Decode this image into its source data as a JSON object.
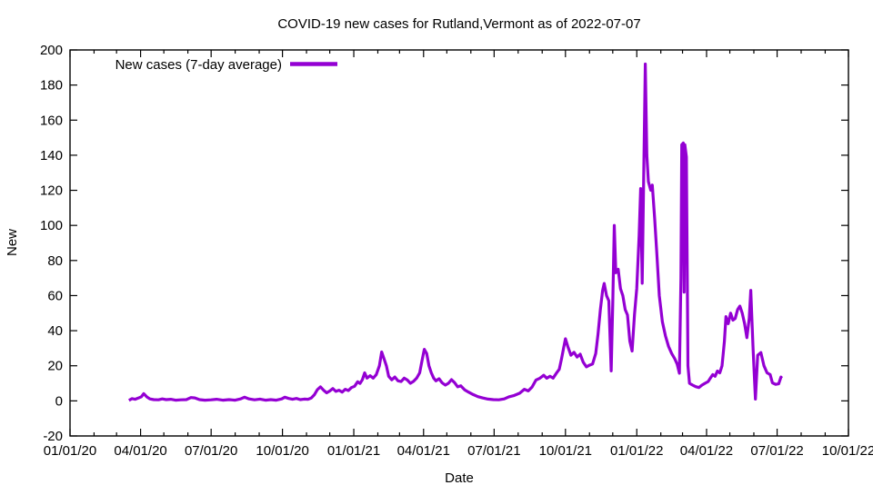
{
  "chart_data": {
    "type": "line",
    "title": "COVID-19 new cases for Rutland,Vermont as of 2022-07-07",
    "xlabel": "Date",
    "ylabel": "New",
    "grid": false,
    "legend_position": "top-left-inside",
    "legend_label": "New cases (7-day average)",
    "line_color": "#9400d3",
    "ylim": [
      -20,
      200
    ],
    "y_ticks": [
      {
        "v": -20,
        "label": "-20"
      },
      {
        "v": 0,
        "label": "0"
      },
      {
        "v": 20,
        "label": "20"
      },
      {
        "v": 40,
        "label": "40"
      },
      {
        "v": 60,
        "label": "60"
      },
      {
        "v": 80,
        "label": "80"
      },
      {
        "v": 100,
        "label": "100"
      },
      {
        "v": 120,
        "label": "120"
      },
      {
        "v": 140,
        "label": "140"
      },
      {
        "v": 160,
        "label": "160"
      },
      {
        "v": 180,
        "label": "180"
      },
      {
        "v": 200,
        "label": "200"
      }
    ],
    "x_range": [
      "2020-01-01",
      "2022-10-01"
    ],
    "x_minor_interval": "month",
    "x_major_ticks": [
      {
        "d": "2020-01-01",
        "label": "01/01/20"
      },
      {
        "d": "2020-04-01",
        "label": "04/01/20"
      },
      {
        "d": "2020-07-01",
        "label": "07/01/20"
      },
      {
        "d": "2020-10-01",
        "label": "10/01/20"
      },
      {
        "d": "2021-01-01",
        "label": "01/01/21"
      },
      {
        "d": "2021-04-01",
        "label": "04/01/21"
      },
      {
        "d": "2021-07-01",
        "label": "07/01/21"
      },
      {
        "d": "2021-10-01",
        "label": "10/01/21"
      },
      {
        "d": "2022-01-01",
        "label": "01/01/22"
      },
      {
        "d": "2022-04-01",
        "label": "04/01/22"
      },
      {
        "d": "2022-07-01",
        "label": "07/01/22"
      },
      {
        "d": "2022-10-01",
        "label": "10/01/22"
      }
    ],
    "series": [
      {
        "name": "New cases (7-day average)",
        "color": "#9400d3",
        "points": [
          [
            "2020-03-17",
            0.3
          ],
          [
            "2020-03-21",
            1.3
          ],
          [
            "2020-03-25",
            0.9
          ],
          [
            "2020-03-29",
            1.6
          ],
          [
            "2020-04-02",
            2.3
          ],
          [
            "2020-04-05",
            4.1
          ],
          [
            "2020-04-09",
            2.3
          ],
          [
            "2020-04-13",
            1.1
          ],
          [
            "2020-04-18",
            0.7
          ],
          [
            "2020-04-24",
            0.6
          ],
          [
            "2020-04-29",
            1.1
          ],
          [
            "2020-05-04",
            0.7
          ],
          [
            "2020-05-10",
            0.9
          ],
          [
            "2020-05-16",
            0.4
          ],
          [
            "2020-05-23",
            0.6
          ],
          [
            "2020-05-30",
            0.7
          ],
          [
            "2020-06-05",
            1.9
          ],
          [
            "2020-06-10",
            1.7
          ],
          [
            "2020-06-16",
            0.7
          ],
          [
            "2020-06-23",
            0.4
          ],
          [
            "2020-07-01",
            0.6
          ],
          [
            "2020-07-08",
            0.9
          ],
          [
            "2020-07-16",
            0.4
          ],
          [
            "2020-07-24",
            0.7
          ],
          [
            "2020-08-01",
            0.4
          ],
          [
            "2020-08-08",
            1.1
          ],
          [
            "2020-08-13",
            2.1
          ],
          [
            "2020-08-19",
            1.1
          ],
          [
            "2020-08-26",
            0.6
          ],
          [
            "2020-09-02",
            1.0
          ],
          [
            "2020-09-09",
            0.4
          ],
          [
            "2020-09-16",
            0.7
          ],
          [
            "2020-09-23",
            0.4
          ],
          [
            "2020-09-30",
            1.1
          ],
          [
            "2020-10-04",
            2.1
          ],
          [
            "2020-10-09",
            1.4
          ],
          [
            "2020-10-14",
            0.9
          ],
          [
            "2020-10-19",
            1.4
          ],
          [
            "2020-10-24",
            0.7
          ],
          [
            "2020-10-29",
            1.0
          ],
          [
            "2020-11-03",
            0.9
          ],
          [
            "2020-11-07",
            1.6
          ],
          [
            "2020-11-11",
            3.4
          ],
          [
            "2020-11-15",
            6.4
          ],
          [
            "2020-11-19",
            8.0
          ],
          [
            "2020-11-23",
            6.1
          ],
          [
            "2020-11-27",
            4.6
          ],
          [
            "2020-12-01",
            5.6
          ],
          [
            "2020-12-05",
            7.0
          ],
          [
            "2020-12-09",
            5.4
          ],
          [
            "2020-12-13",
            6.1
          ],
          [
            "2020-12-17",
            5.0
          ],
          [
            "2020-12-21",
            6.6
          ],
          [
            "2020-12-25",
            5.9
          ],
          [
            "2020-12-29",
            7.6
          ],
          [
            "2021-01-02",
            8.3
          ],
          [
            "2021-01-06",
            10.9
          ],
          [
            "2021-01-09",
            9.9
          ],
          [
            "2021-01-12",
            12.0
          ],
          [
            "2021-01-15",
            16.0
          ],
          [
            "2021-01-18",
            13.0
          ],
          [
            "2021-01-22",
            14.3
          ],
          [
            "2021-01-26",
            13.0
          ],
          [
            "2021-01-30",
            15.0
          ],
          [
            "2021-02-03",
            20.0
          ],
          [
            "2021-02-06",
            27.9
          ],
          [
            "2021-02-09",
            24.0
          ],
          [
            "2021-02-12",
            20.0
          ],
          [
            "2021-02-15",
            14.0
          ],
          [
            "2021-02-19",
            12.0
          ],
          [
            "2021-02-23",
            13.6
          ],
          [
            "2021-02-27",
            11.4
          ],
          [
            "2021-03-03",
            11.0
          ],
          [
            "2021-03-07",
            13.0
          ],
          [
            "2021-03-11",
            11.9
          ],
          [
            "2021-03-15",
            10.0
          ],
          [
            "2021-03-19",
            11.1
          ],
          [
            "2021-03-23",
            12.9
          ],
          [
            "2021-03-27",
            16.0
          ],
          [
            "2021-03-30",
            23.0
          ],
          [
            "2021-04-02",
            29.4
          ],
          [
            "2021-04-05",
            27.0
          ],
          [
            "2021-04-08",
            20.0
          ],
          [
            "2021-04-11",
            16.0
          ],
          [
            "2021-04-14",
            13.0
          ],
          [
            "2021-04-17",
            11.4
          ],
          [
            "2021-04-21",
            12.6
          ],
          [
            "2021-04-25",
            10.3
          ],
          [
            "2021-04-29",
            9.0
          ],
          [
            "2021-05-03",
            10.0
          ],
          [
            "2021-05-07",
            12.1
          ],
          [
            "2021-05-11",
            10.4
          ],
          [
            "2021-05-15",
            8.0
          ],
          [
            "2021-05-19",
            8.6
          ],
          [
            "2021-05-24",
            6.3
          ],
          [
            "2021-05-29",
            5.0
          ],
          [
            "2021-06-04",
            3.6
          ],
          [
            "2021-06-10",
            2.4
          ],
          [
            "2021-06-16",
            1.7
          ],
          [
            "2021-06-23",
            1.0
          ],
          [
            "2021-06-30",
            0.7
          ],
          [
            "2021-07-07",
            0.6
          ],
          [
            "2021-07-14",
            1.1
          ],
          [
            "2021-07-20",
            2.3
          ],
          [
            "2021-07-27",
            3.1
          ],
          [
            "2021-08-03",
            4.4
          ],
          [
            "2021-08-09",
            6.6
          ],
          [
            "2021-08-14",
            5.7
          ],
          [
            "2021-08-19",
            7.9
          ],
          [
            "2021-08-24",
            11.9
          ],
          [
            "2021-08-29",
            12.9
          ],
          [
            "2021-09-03",
            14.6
          ],
          [
            "2021-09-07",
            12.9
          ],
          [
            "2021-09-11",
            14.0
          ],
          [
            "2021-09-15",
            13.0
          ],
          [
            "2021-09-19",
            15.6
          ],
          [
            "2021-09-23",
            18.0
          ],
          [
            "2021-09-26",
            24.0
          ],
          [
            "2021-09-29",
            31.0
          ],
          [
            "2021-10-01",
            35.4
          ],
          [
            "2021-10-04",
            31.0
          ],
          [
            "2021-10-08",
            26.0
          ],
          [
            "2021-10-12",
            27.7
          ],
          [
            "2021-10-16",
            25.0
          ],
          [
            "2021-10-20",
            26.6
          ],
          [
            "2021-10-24",
            22.0
          ],
          [
            "2021-10-28",
            19.4
          ],
          [
            "2021-11-01",
            20.3
          ],
          [
            "2021-11-05",
            21.0
          ],
          [
            "2021-11-09",
            27.0
          ],
          [
            "2021-11-12",
            38.0
          ],
          [
            "2021-11-15",
            52.0
          ],
          [
            "2021-11-18",
            63.0
          ],
          [
            "2021-11-20",
            66.9
          ],
          [
            "2021-11-23",
            60.0
          ],
          [
            "2021-11-26",
            57.0
          ],
          [
            "2021-11-29",
            17.1
          ],
          [
            "2021-12-01",
            55.0
          ],
          [
            "2021-12-03",
            100.0
          ],
          [
            "2021-12-05",
            73.0
          ],
          [
            "2021-12-08",
            75.0
          ],
          [
            "2021-12-11",
            64.0
          ],
          [
            "2021-12-14",
            60.0
          ],
          [
            "2021-12-17",
            52.0
          ],
          [
            "2021-12-20",
            49.0
          ],
          [
            "2021-12-23",
            34.0
          ],
          [
            "2021-12-26",
            28.4
          ],
          [
            "2021-12-29",
            49.0
          ],
          [
            "2022-01-01",
            64.0
          ],
          [
            "2022-01-04",
            94.0
          ],
          [
            "2022-01-06",
            121.0
          ],
          [
            "2022-01-08",
            67.0
          ],
          [
            "2022-01-12",
            192.0
          ],
          [
            "2022-01-14",
            140.0
          ],
          [
            "2022-01-16",
            125.0
          ],
          [
            "2022-01-19",
            120.0
          ],
          [
            "2022-01-21",
            123.0
          ],
          [
            "2022-01-24",
            104.0
          ],
          [
            "2022-01-27",
            83.0
          ],
          [
            "2022-01-30",
            60.0
          ],
          [
            "2022-02-03",
            45.0
          ],
          [
            "2022-02-07",
            37.0
          ],
          [
            "2022-02-11",
            31.0
          ],
          [
            "2022-02-15",
            27.0
          ],
          [
            "2022-02-19",
            24.0
          ],
          [
            "2022-02-22",
            21.0
          ],
          [
            "2022-02-25",
            15.7
          ],
          [
            "2022-02-27",
            70.0
          ],
          [
            "2022-02-28",
            146.0
          ],
          [
            "2022-03-02",
            147.0
          ],
          [
            "2022-03-03",
            62.0
          ],
          [
            "2022-03-04",
            146.0
          ],
          [
            "2022-03-06",
            139.0
          ],
          [
            "2022-03-08",
            20.0
          ],
          [
            "2022-03-10",
            10.0
          ],
          [
            "2022-03-14",
            9.0
          ],
          [
            "2022-03-18",
            8.1
          ],
          [
            "2022-03-22",
            7.6
          ],
          [
            "2022-03-26",
            9.0
          ],
          [
            "2022-03-30",
            10.0
          ],
          [
            "2022-04-03",
            11.0
          ],
          [
            "2022-04-06",
            13.0
          ],
          [
            "2022-04-09",
            15.0
          ],
          [
            "2022-04-12",
            14.0
          ],
          [
            "2022-04-15",
            17.0
          ],
          [
            "2022-04-18",
            16.0
          ],
          [
            "2022-04-21",
            20.0
          ],
          [
            "2022-04-24",
            34.0
          ],
          [
            "2022-04-26",
            48.0
          ],
          [
            "2022-04-29",
            44.0
          ],
          [
            "2022-05-02",
            50.0
          ],
          [
            "2022-05-05",
            46.0
          ],
          [
            "2022-05-08",
            47.0
          ],
          [
            "2022-05-11",
            52.0
          ],
          [
            "2022-05-14",
            54.0
          ],
          [
            "2022-05-17",
            50.0
          ],
          [
            "2022-05-20",
            44.0
          ],
          [
            "2022-05-23",
            36.0
          ],
          [
            "2022-05-26",
            47.0
          ],
          [
            "2022-05-28",
            63.0
          ],
          [
            "2022-05-31",
            30.0
          ],
          [
            "2022-06-03",
            1.0
          ],
          [
            "2022-06-06",
            26.0
          ],
          [
            "2022-06-10",
            27.5
          ],
          [
            "2022-06-14",
            20.0
          ],
          [
            "2022-06-18",
            16.0
          ],
          [
            "2022-06-22",
            15.0
          ],
          [
            "2022-06-25",
            10.3
          ],
          [
            "2022-06-29",
            9.4
          ],
          [
            "2022-07-03",
            9.7
          ],
          [
            "2022-07-06",
            13.6
          ],
          [
            "2022-07-07",
            13.0
          ]
        ]
      }
    ]
  }
}
